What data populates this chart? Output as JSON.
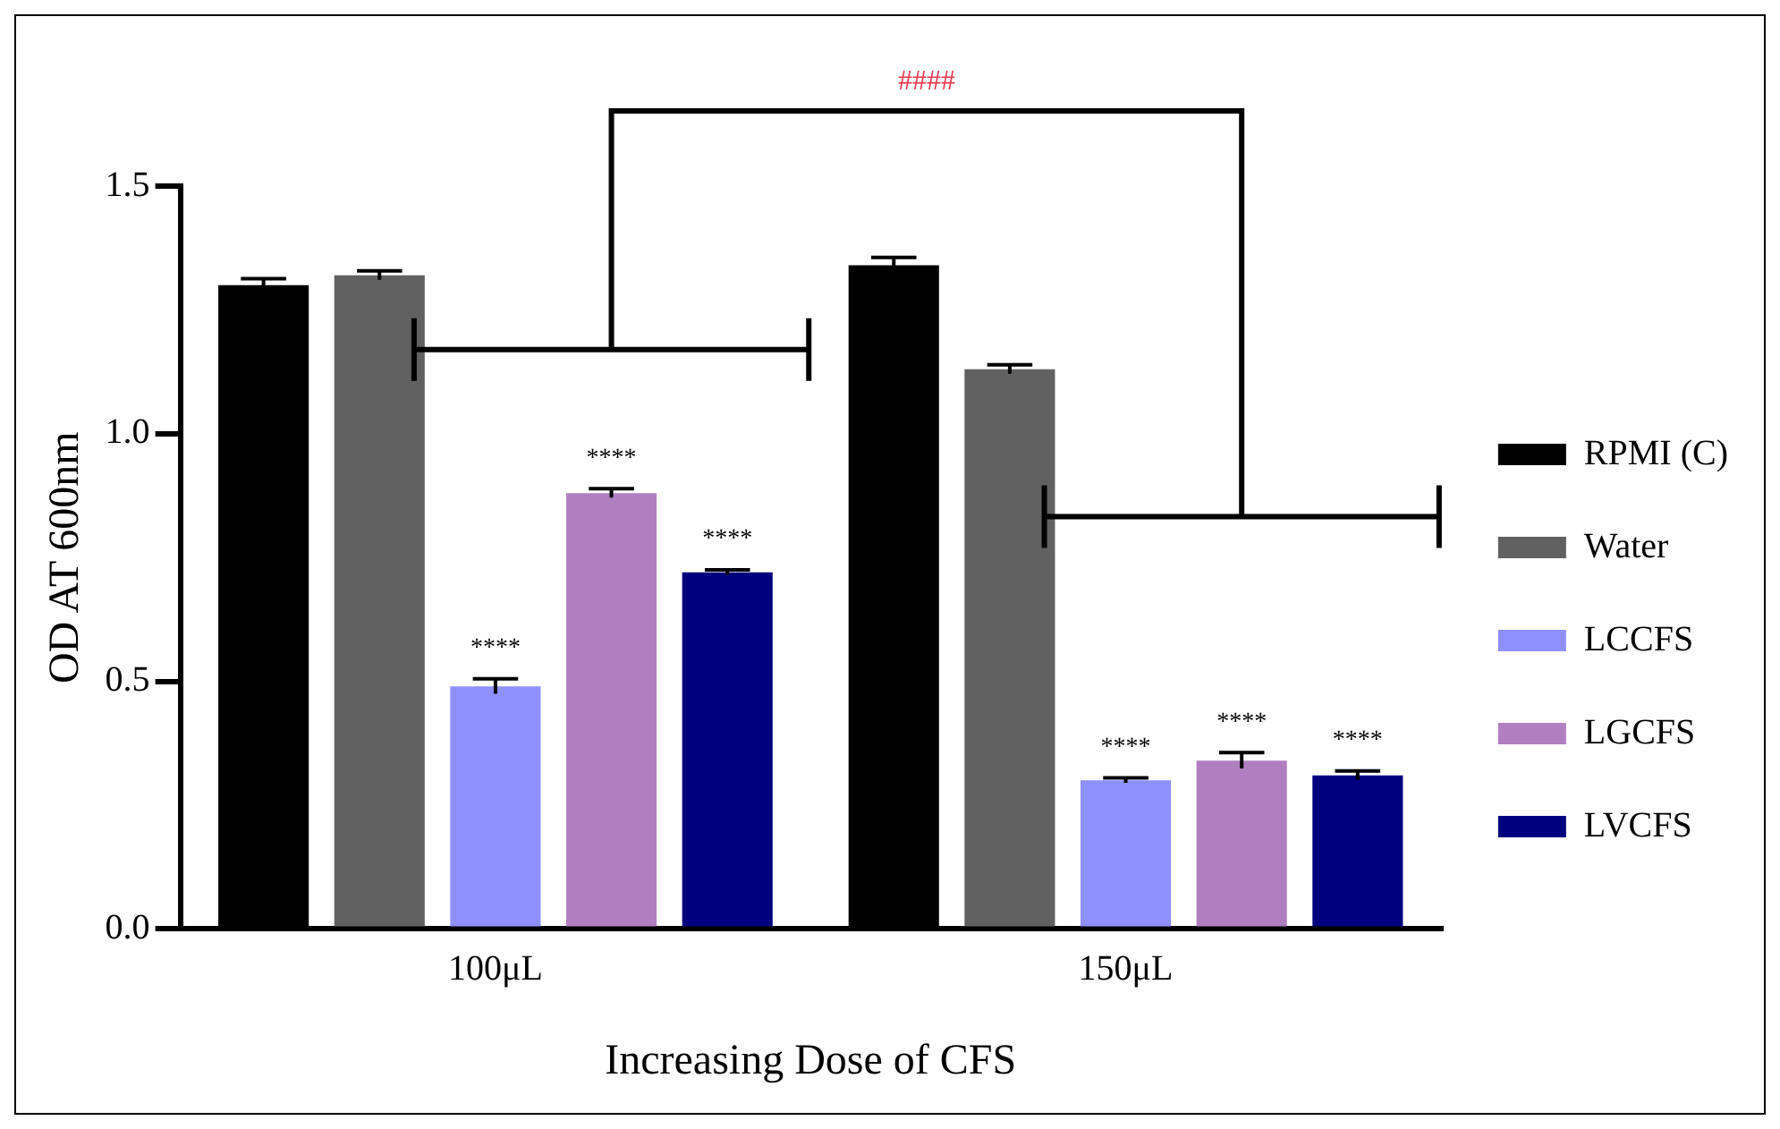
{
  "chart_data": {
    "type": "bar",
    "categories": [
      "100μL",
      "150μL"
    ],
    "xlabel": "Increasing Dose of CFS",
    "ylabel": "OD AT 600nm",
    "ylim": [
      0,
      1.5
    ],
    "yticks": [
      {
        "value": 0,
        "label": "0.0"
      },
      {
        "value": 0.5,
        "label": "0.5"
      },
      {
        "value": 1,
        "label": "1.0"
      },
      {
        "value": 1.5,
        "label": "1.5"
      }
    ],
    "grid": false,
    "legend": "right",
    "annotations": [
      "####"
    ],
    "series": [
      {
        "name": "RPMI (C)",
        "color": "#000000",
        "values": [
          1.3,
          1.34
        ],
        "errors": [
          0.013,
          0.016
        ]
      },
      {
        "name": "Water",
        "color": "#616161",
        "values": [
          1.32,
          1.13
        ],
        "errors": [
          0.009,
          0.009
        ]
      },
      {
        "name": "LCCFS",
        "color": "#8f8fff",
        "values": [
          0.49,
          0.3
        ],
        "errors": [
          0.015,
          0.005
        ],
        "value_labels": [
          "****",
          "****"
        ]
      },
      {
        "name": "LGCFS",
        "color": "#b07fc0",
        "values": [
          0.88,
          0.34
        ],
        "errors": [
          0.009,
          0.016
        ],
        "value_labels": [
          "****",
          "****"
        ]
      },
      {
        "name": "LVCFS",
        "color": "#00007f",
        "values": [
          0.72,
          0.31
        ],
        "errors": [
          0.005,
          0.009
        ],
        "value_labels": [
          "****",
          "****"
        ]
      }
    ]
  }
}
